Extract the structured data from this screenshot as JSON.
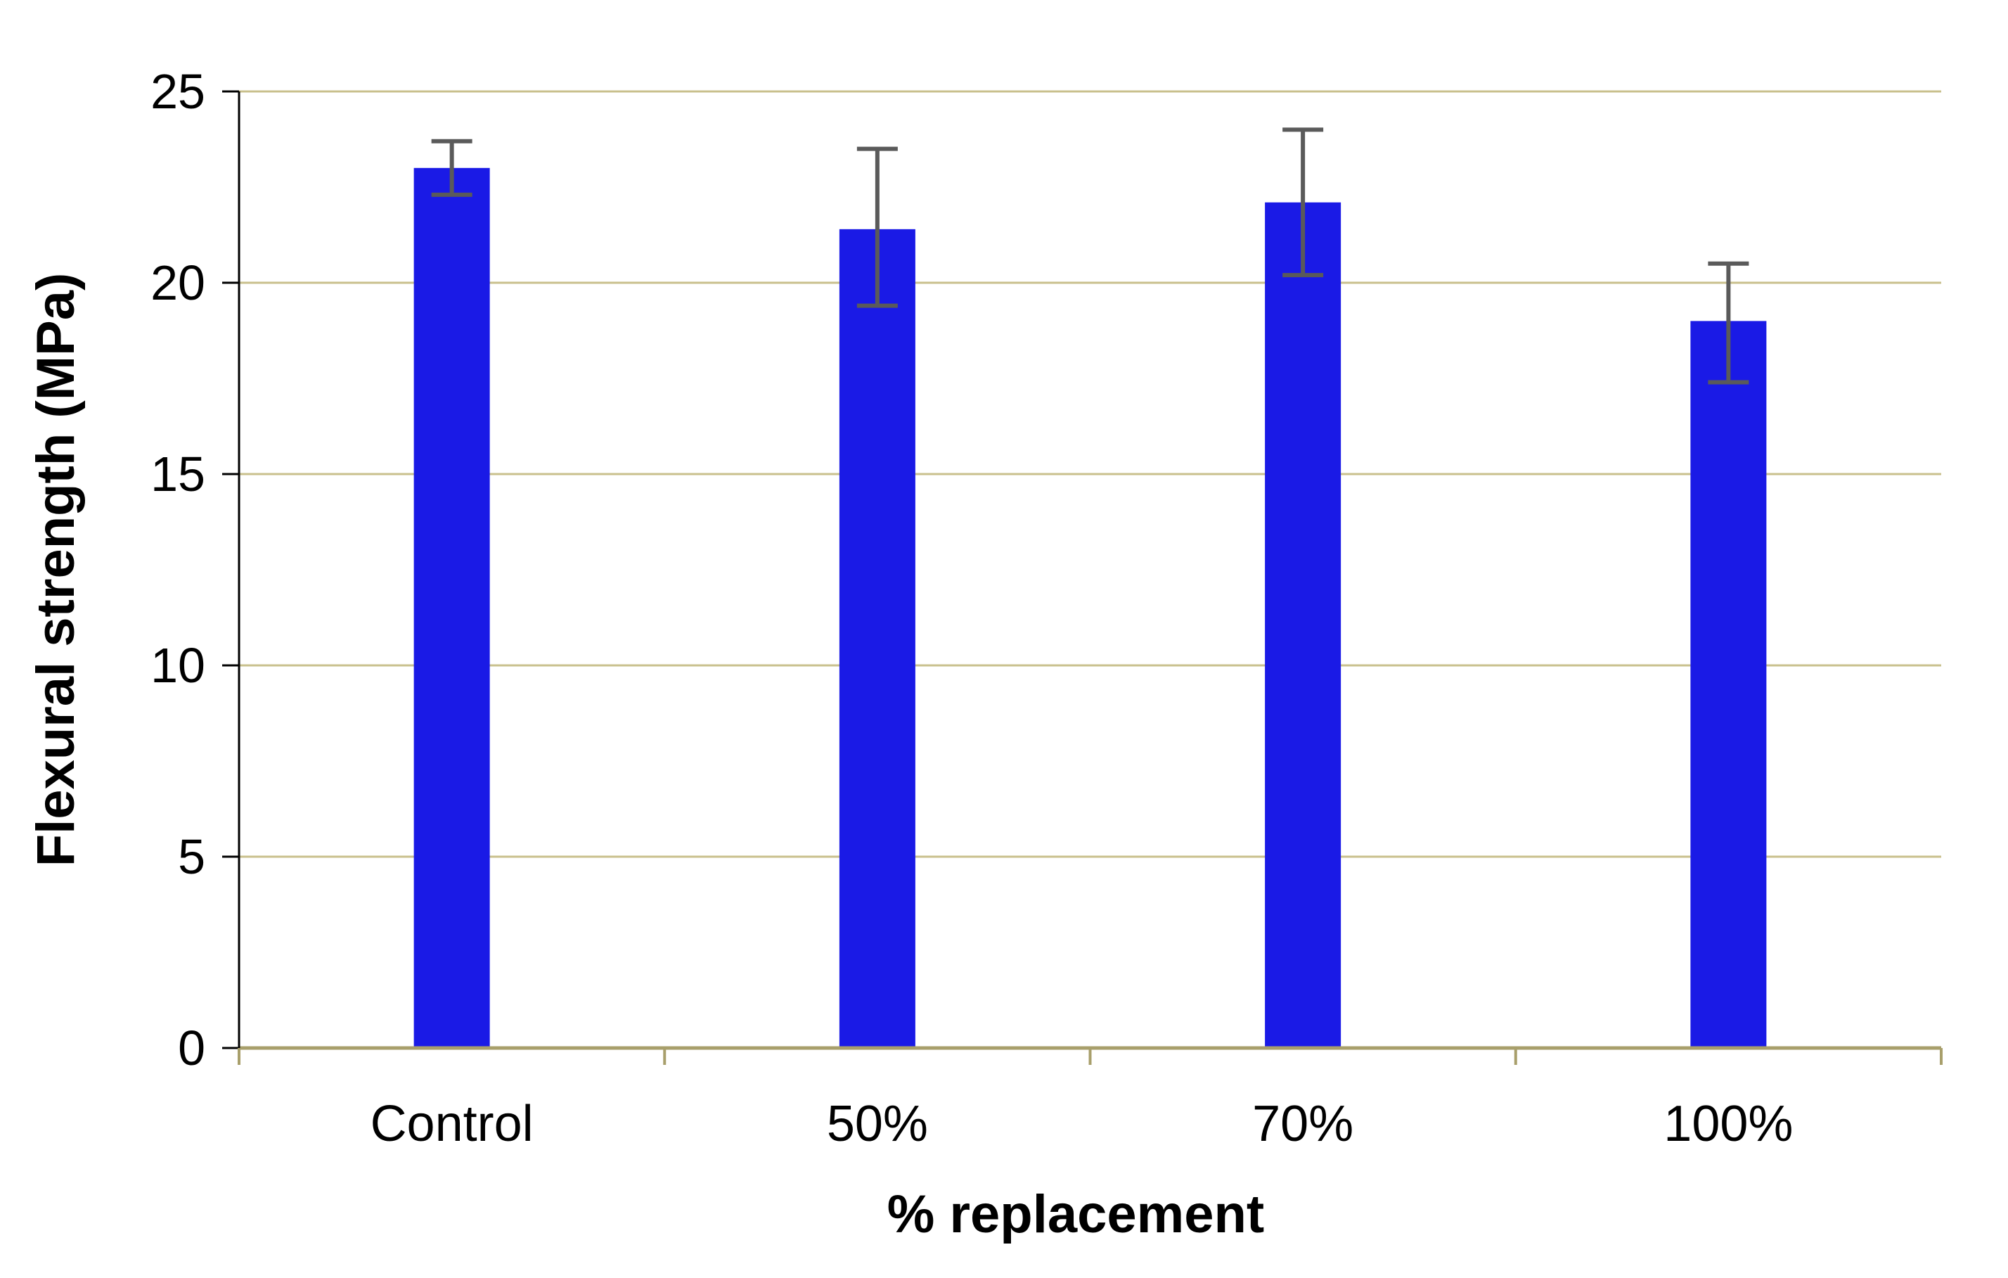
{
  "chart_data": {
    "type": "bar",
    "title": "",
    "categories": [
      "Control",
      "50%",
      "70%",
      "100%"
    ],
    "values": [
      23.0,
      21.4,
      22.1,
      19.0
    ],
    "error_upper": [
      0.7,
      2.1,
      1.9,
      1.5
    ],
    "error_lower": [
      0.7,
      2.0,
      1.9,
      1.6
    ],
    "xlabel": "% replacement",
    "ylabel": "Flexural strength (MPa)",
    "ylim": [
      0,
      25
    ],
    "yticks": [
      0,
      5,
      10,
      15,
      20,
      25
    ],
    "grid": true,
    "legend": "none",
    "colors": {
      "bar": "#1A1AE6",
      "error_bar": "#5A5A5A",
      "gridline": "#C9C08D",
      "x_axis": "#A89F6B",
      "y_axis": "#000000",
      "text": "#000000",
      "background": "#FFFFFF"
    }
  }
}
